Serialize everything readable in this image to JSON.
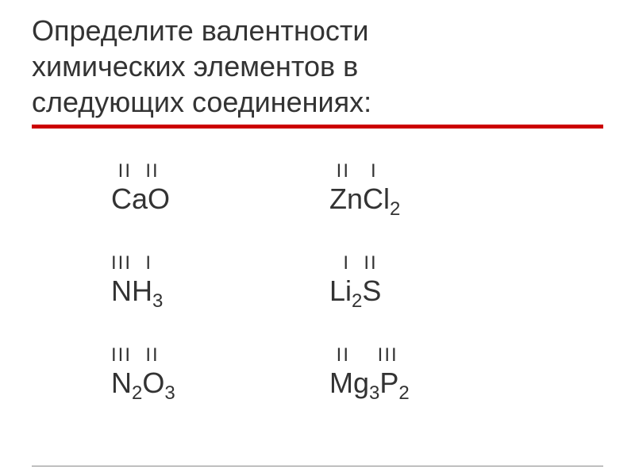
{
  "title": {
    "line1": "Определите валентности",
    "line2": "химических элементов в",
    "line3": "следующих соединениях:"
  },
  "compounds": [
    {
      "valencies": " II  II",
      "formula_parts": [
        {
          "text": "CaO",
          "sub": false
        }
      ]
    },
    {
      "valencies": " II   I",
      "formula_parts": [
        {
          "text": "ZnCl",
          "sub": false
        },
        {
          "text": "2",
          "sub": true
        }
      ]
    },
    {
      "valencies": "III  I",
      "formula_parts": [
        {
          "text": "NH",
          "sub": false
        },
        {
          "text": "3",
          "sub": true
        }
      ]
    },
    {
      "valencies": "  I  II",
      "formula_parts": [
        {
          "text": "Li",
          "sub": false
        },
        {
          "text": "2",
          "sub": true
        },
        {
          "text": "S",
          "sub": false
        }
      ]
    },
    {
      "valencies": "III  II",
      "formula_parts": [
        {
          "text": "N",
          "sub": false
        },
        {
          "text": "2",
          "sub": true
        },
        {
          "text": "O",
          "sub": false
        },
        {
          "text": "3",
          "sub": true
        }
      ]
    },
    {
      "valencies": " II    III",
      "formula_parts": [
        {
          "text": "Mg",
          "sub": false
        },
        {
          "text": "3",
          "sub": true
        },
        {
          "text": "P",
          "sub": false
        },
        {
          "text": "2",
          "sub": true
        }
      ]
    }
  ],
  "colors": {
    "text": "#333333",
    "accent_line": "#cc0000",
    "background": "#ffffff",
    "bottom_line": "#888888"
  },
  "fonts": {
    "title_size": 36,
    "valency_size": 24,
    "formula_size": 36,
    "subscript_size": 24
  }
}
